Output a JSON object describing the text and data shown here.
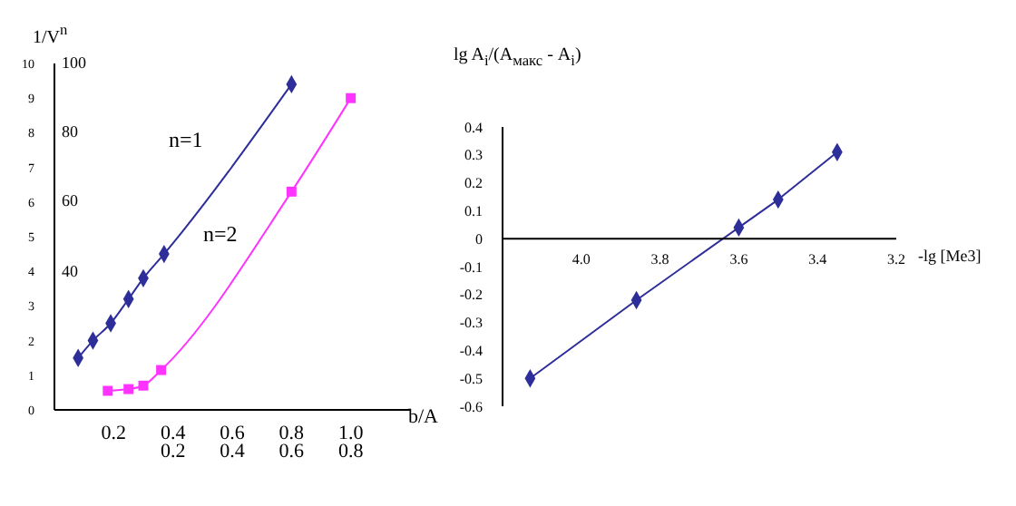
{
  "chart_data": [
    {
      "type": "line",
      "ylabel": "1/V$^{n}$",
      "xlabel": "b/A",
      "xlim": [
        0,
        1.2
      ],
      "xticks": [
        0.2,
        0.4,
        0.6,
        0.8,
        {
          "value": 1,
          "label": "1.0"
        }
      ],
      "x2lim": [
        -0.2,
        1.0
      ],
      "x2ticks": [
        0.2,
        0.4,
        0.6,
        0.8
      ],
      "ylim": [
        0,
        10
      ],
      "yticks": [
        0,
        1,
        2,
        3,
        4,
        5,
        6,
        7,
        8,
        9,
        10
      ],
      "y2lim": [
        0,
        100
      ],
      "y2ticks": [
        40,
        60,
        80,
        100
      ],
      "grid": false,
      "legend": false,
      "series": [
        {
          "name": "n=1",
          "color": "#2e2e9a",
          "marker": "diamond",
          "x": [
            0.08,
            0.13,
            0.19,
            0.25,
            0.3,
            0.37,
            0.8
          ],
          "values": [
            1.5,
            2.0,
            2.5,
            3.2,
            3.8,
            4.5,
            9.4
          ]
        },
        {
          "name": "n=2",
          "color": "#ff33ff",
          "marker": "square",
          "x": [
            0.18,
            0.25,
            0.3,
            0.36,
            0.8,
            1.0
          ],
          "values": [
            0.55,
            0.6,
            0.7,
            1.15,
            6.3,
            9.0
          ]
        }
      ]
    },
    {
      "type": "line",
      "ylabel": "lg A$_{i}$/(A$_{макс}$ - A$_{i}$)",
      "xlabel": "-lg [Me3]",
      "xlim": [
        4.2,
        3.2
      ],
      "xticks": [
        {
          "value": 4,
          "label": "4.0"
        },
        3.8,
        3.6,
        3.4,
        3.2
      ],
      "ylim": [
        -0.6,
        0.4
      ],
      "yticks": [
        -0.6,
        -0.5,
        -0.4,
        -0.3,
        -0.2,
        -0.1,
        0,
        0.1,
        0.2,
        0.3,
        0.4
      ],
      "grid": false,
      "legend": false,
      "marker": "diamond",
      "series": [
        {
          "color": "#2e2e9a",
          "x": [
            4.13,
            3.86,
            3.6,
            3.5,
            3.35
          ],
          "values": [
            -0.5,
            -0.22,
            0.04,
            0.14,
            0.31
          ]
        }
      ]
    }
  ]
}
